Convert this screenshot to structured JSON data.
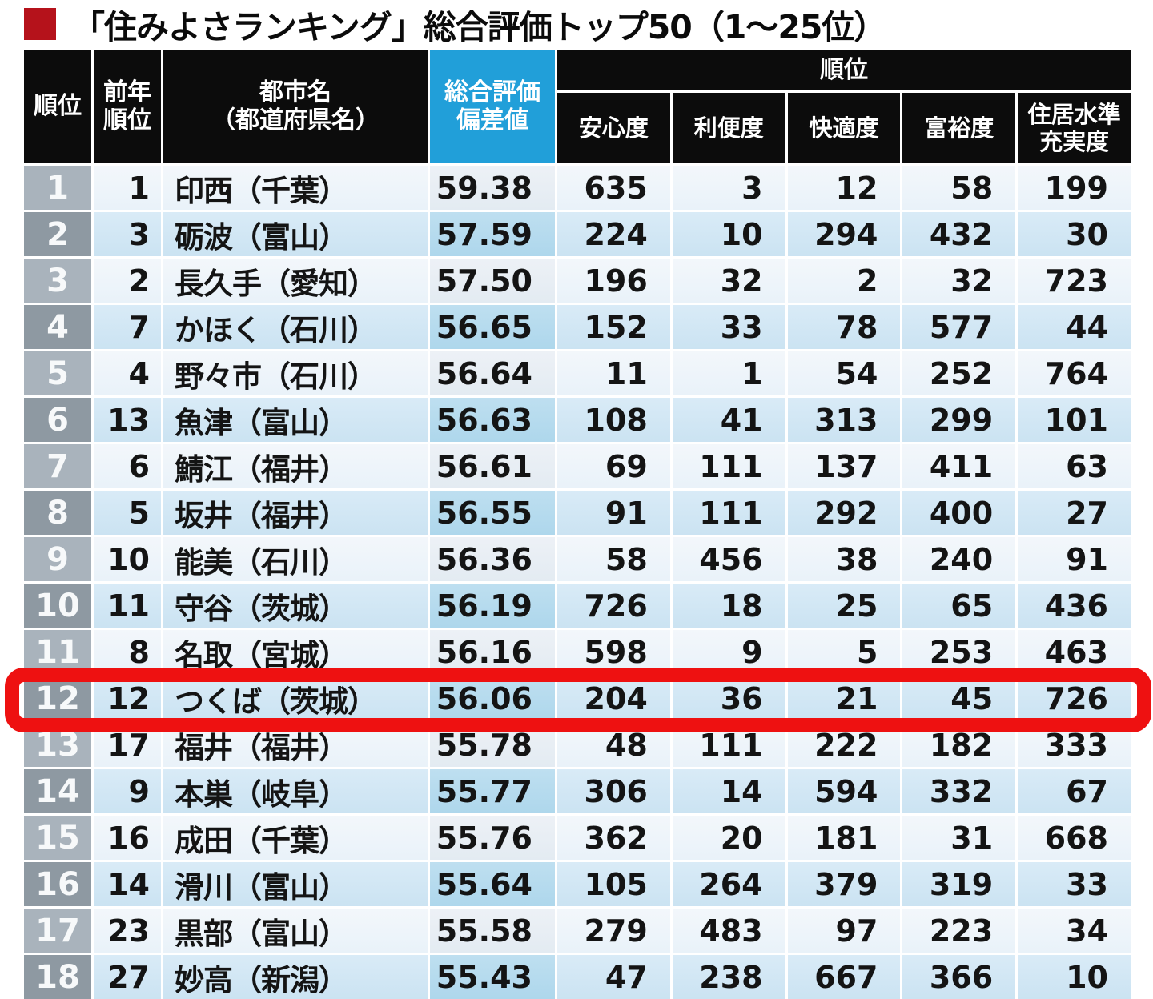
{
  "title": {
    "text": "「住みよさランキング」総合評価トップ50（1～25位）"
  },
  "header": {
    "rank": "順位",
    "prev_rank": "前年\n順位",
    "city": "都市名\n（都道府県名）",
    "score": "総合評価\n偏差値",
    "group": "順位",
    "subs": [
      "安心度",
      "利便度",
      "快適度",
      "富裕度",
      "住居水準\n充実度"
    ]
  },
  "colors": {
    "highlight_ring": "#ee1111",
    "title_bullet": "#b5121b",
    "score_header": "#219fd9",
    "header_black": "#0c0c0c",
    "row_light": "#eef4fa",
    "row_dark": "#cfe6f4"
  },
  "chart_data": {
    "type": "table",
    "title": "「住みよさランキング」総合評価トップ50（1～25位）",
    "columns": [
      "順位",
      "前年順位",
      "都市名（都道府県名）",
      "総合評価偏差値",
      "安心度",
      "利便度",
      "快適度",
      "富裕度",
      "住居水準充実度"
    ],
    "column_group": {
      "label": "順位",
      "spans": [
        "安心度",
        "利便度",
        "快適度",
        "富裕度",
        "住居水準充実度"
      ]
    },
    "highlighted_row_rank": 12,
    "rows": [
      [
        1,
        1,
        "印西（千葉）",
        59.38,
        635,
        3,
        12,
        58,
        199
      ],
      [
        2,
        3,
        "砺波（富山）",
        57.59,
        224,
        10,
        294,
        432,
        30
      ],
      [
        3,
        2,
        "長久手（愛知）",
        57.5,
        196,
        32,
        2,
        32,
        723
      ],
      [
        4,
        7,
        "かほく（石川）",
        56.65,
        152,
        33,
        78,
        577,
        44
      ],
      [
        5,
        4,
        "野々市（石川）",
        56.64,
        11,
        1,
        54,
        252,
        764
      ],
      [
        6,
        13,
        "魚津（富山）",
        56.63,
        108,
        41,
        313,
        299,
        101
      ],
      [
        7,
        6,
        "鯖江（福井）",
        56.61,
        69,
        111,
        137,
        411,
        63
      ],
      [
        8,
        5,
        "坂井（福井）",
        56.55,
        91,
        111,
        292,
        400,
        27
      ],
      [
        9,
        10,
        "能美（石川）",
        56.36,
        58,
        456,
        38,
        240,
        91
      ],
      [
        10,
        11,
        "守谷（茨城）",
        56.19,
        726,
        18,
        25,
        65,
        436
      ],
      [
        11,
        8,
        "名取（宮城）",
        56.16,
        598,
        9,
        5,
        253,
        463
      ],
      [
        12,
        12,
        "つくば（茨城）",
        56.06,
        204,
        36,
        21,
        45,
        726
      ],
      [
        13,
        17,
        "福井（福井）",
        55.78,
        48,
        111,
        222,
        182,
        333
      ],
      [
        14,
        9,
        "本巣（岐阜）",
        55.77,
        306,
        14,
        594,
        332,
        67
      ],
      [
        15,
        16,
        "成田（千葉）",
        55.76,
        362,
        20,
        181,
        31,
        668
      ],
      [
        16,
        14,
        "滑川（富山）",
        55.64,
        105,
        264,
        379,
        319,
        33
      ],
      [
        17,
        23,
        "黒部（富山）",
        55.58,
        279,
        483,
        97,
        223,
        34
      ],
      [
        18,
        27,
        "妙高（新潟）",
        55.43,
        47,
        238,
        667,
        366,
        10
      ]
    ]
  }
}
